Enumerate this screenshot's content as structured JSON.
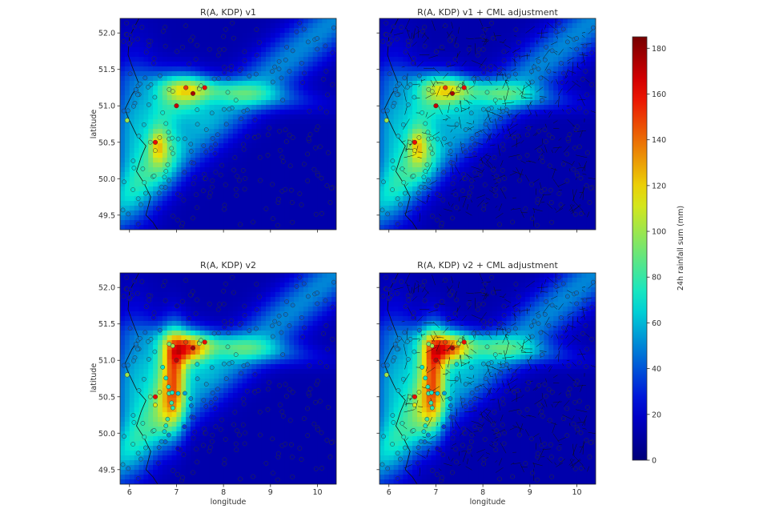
{
  "chart_data": {
    "type": "heatmap",
    "panels": [
      {
        "title": "R(A, KDP) v1",
        "show_x_ticks": false,
        "show_y_ticks": true,
        "ylabel": "latitude",
        "xlabel": "",
        "cml": false,
        "variant": 1
      },
      {
        "title": "R(A, KDP) v1 + CML adjustment",
        "show_x_ticks": false,
        "show_y_ticks": false,
        "ylabel": "",
        "xlabel": "",
        "cml": true,
        "variant": 1
      },
      {
        "title": "R(A, KDP) v2",
        "show_x_ticks": true,
        "show_y_ticks": true,
        "ylabel": "latitude",
        "xlabel": "longitude",
        "cml": false,
        "variant": 2
      },
      {
        "title": "R(A, KDP) v2 + CML adjustment",
        "show_x_ticks": true,
        "show_y_ticks": false,
        "ylabel": "",
        "xlabel": "longitude",
        "cml": true,
        "variant": 2
      }
    ],
    "xlim": [
      5.8,
      10.4
    ],
    "ylim": [
      49.3,
      52.2
    ],
    "x_ticks": [
      6,
      7,
      8,
      9,
      10
    ],
    "x_tick_labels": [
      "6",
      "7",
      "8",
      "9",
      "10"
    ],
    "y_ticks": [
      49.5,
      50.0,
      50.5,
      51.0,
      51.5,
      52.0
    ],
    "y_tick_labels": [
      "49.5",
      "50.0",
      "50.5",
      "51.0",
      "51.5",
      "52.0"
    ],
    "colorbar": {
      "label": "24h rainfall sum (mm)",
      "range": [
        0,
        185
      ],
      "ticks": [
        0,
        20,
        40,
        60,
        80,
        100,
        120,
        140,
        160,
        180
      ],
      "tick_labels": [
        "0",
        "20",
        "40",
        "60",
        "80",
        "100",
        "120",
        "140",
        "160",
        "180"
      ],
      "colormap": "jet"
    },
    "high_gauges": [
      {
        "lon": 7.0,
        "lat": 51.0,
        "value": 170
      },
      {
        "lon": 7.35,
        "lat": 51.17,
        "value": 175
      },
      {
        "lon": 7.6,
        "lat": 51.25,
        "value": 160
      },
      {
        "lon": 6.55,
        "lat": 50.5,
        "value": 160
      },
      {
        "lon": 7.2,
        "lat": 51.25,
        "value": 150
      },
      {
        "lon": 5.95,
        "lat": 50.8,
        "value": 100
      }
    ]
  }
}
